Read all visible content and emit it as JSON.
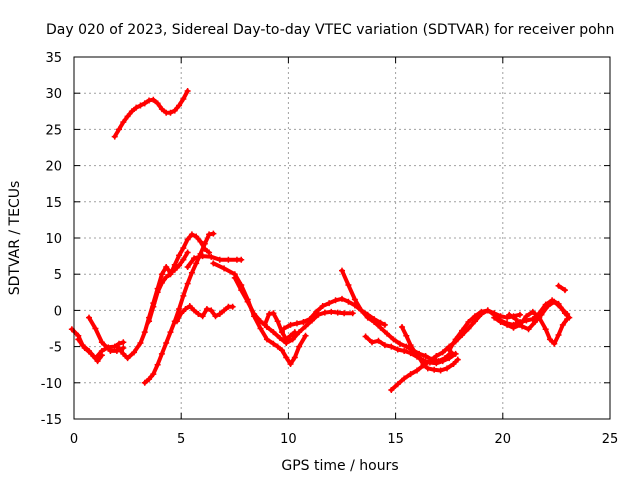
{
  "chart_data": {
    "type": "scatter",
    "title": "Day 020 of 2023, Sidereal Day-to-day VTEC variation (SDTVAR) for receiver pohn",
    "xlabel": "GPS time / hours",
    "ylabel": "SDTVAR / TECUs",
    "xlim": [
      0,
      25
    ],
    "ylim": [
      -15,
      35
    ],
    "xticks": [
      0,
      5,
      10,
      15,
      20,
      25
    ],
    "yticks": [
      -15,
      -10,
      -5,
      0,
      5,
      10,
      15,
      20,
      25,
      30,
      35
    ],
    "grid": true,
    "color": "#ff0000",
    "series": [
      {
        "name": "arc-1",
        "points": [
          [
            -0.1,
            -2.6
          ],
          [
            0.2,
            -3.5
          ],
          [
            0.4,
            -4.8
          ],
          [
            0.7,
            -5.6
          ],
          [
            1.0,
            -6.6
          ],
          [
            1.3,
            -5.6
          ],
          [
            1.6,
            -5.1
          ],
          [
            1.9,
            -5.0
          ],
          [
            2.1,
            -4.6
          ],
          [
            2.3,
            -4.4
          ]
        ]
      },
      {
        "name": "arc-2",
        "points": [
          [
            0.2,
            -4.0
          ],
          [
            0.5,
            -5.2
          ],
          [
            0.8,
            -6.0
          ],
          [
            1.1,
            -7.0
          ],
          [
            1.3,
            -6.2
          ]
        ]
      },
      {
        "name": "arc-3",
        "points": [
          [
            0.7,
            -1.0
          ],
          [
            1.0,
            -2.5
          ],
          [
            1.3,
            -4.4
          ],
          [
            1.7,
            -5.6
          ],
          [
            2.0,
            -5.6
          ],
          [
            2.3,
            -5.2
          ]
        ]
      },
      {
        "name": "arc-4",
        "points": [
          [
            2.0,
            -5.0
          ],
          [
            2.3,
            -6.0
          ],
          [
            2.5,
            -6.6
          ],
          [
            2.8,
            -5.8
          ],
          [
            3.1,
            -4.5
          ],
          [
            3.3,
            -3.0
          ],
          [
            3.5,
            -1.0
          ],
          [
            3.7,
            1.0
          ],
          [
            3.9,
            3.0
          ],
          [
            4.1,
            5.0
          ],
          [
            4.3,
            6.0
          ],
          [
            4.5,
            5.2
          ],
          [
            4.7,
            5.6
          ],
          [
            4.9,
            6.2
          ],
          [
            5.1,
            7.0
          ],
          [
            5.3,
            8.0
          ]
        ]
      },
      {
        "name": "arc-5",
        "points": [
          [
            3.5,
            -1.5
          ],
          [
            3.7,
            0.5
          ],
          [
            3.9,
            2.5
          ],
          [
            4.1,
            3.8
          ],
          [
            4.3,
            4.6
          ],
          [
            4.5,
            5.0
          ],
          [
            4.7,
            6.3
          ],
          [
            4.9,
            7.6
          ],
          [
            5.1,
            8.6
          ],
          [
            5.3,
            9.8
          ],
          [
            5.5,
            10.5
          ],
          [
            5.7,
            10.2
          ],
          [
            5.9,
            9.5
          ],
          [
            6.1,
            8.5
          ],
          [
            6.3,
            8.0
          ]
        ]
      },
      {
        "name": "arc-6",
        "points": [
          [
            3.3,
            -10.0
          ],
          [
            3.5,
            -9.5
          ],
          [
            3.7,
            -8.8
          ],
          [
            3.9,
            -7.5
          ],
          [
            4.1,
            -6.0
          ],
          [
            4.3,
            -4.5
          ],
          [
            4.5,
            -3.0
          ],
          [
            4.7,
            -1.5
          ],
          [
            4.9,
            0.2
          ],
          [
            5.1,
            2.0
          ],
          [
            5.3,
            3.7
          ],
          [
            5.5,
            5.2
          ],
          [
            5.7,
            6.5
          ],
          [
            5.9,
            7.8
          ],
          [
            6.1,
            9.2
          ],
          [
            6.3,
            10.5
          ],
          [
            6.5,
            10.6
          ]
        ]
      },
      {
        "name": "arc-7",
        "points": [
          [
            4.8,
            -1.5
          ],
          [
            5.0,
            -0.4
          ],
          [
            5.2,
            0.2
          ],
          [
            5.4,
            0.6
          ],
          [
            5.6,
            0.0
          ],
          [
            5.8,
            -0.5
          ],
          [
            6.0,
            -0.8
          ],
          [
            6.2,
            0.2
          ],
          [
            6.4,
            0.0
          ],
          [
            6.6,
            -0.8
          ],
          [
            6.8,
            -0.5
          ],
          [
            7.0,
            0.0
          ],
          [
            7.2,
            0.5
          ],
          [
            7.4,
            0.5
          ]
        ]
      },
      {
        "name": "arc-8",
        "points": [
          [
            5.3,
            6.0
          ],
          [
            5.6,
            7.2
          ],
          [
            6.0,
            7.5
          ],
          [
            6.4,
            7.4
          ],
          [
            6.8,
            7.0
          ],
          [
            7.2,
            7.0
          ],
          [
            7.6,
            7.0
          ],
          [
            7.8,
            7.0
          ]
        ]
      },
      {
        "name": "arc-9",
        "points": [
          [
            6.5,
            6.5
          ],
          [
            7.0,
            5.8
          ],
          [
            7.5,
            5.0
          ],
          [
            7.8,
            3.5
          ],
          [
            8.1,
            1.5
          ],
          [
            8.4,
            -0.8
          ],
          [
            8.7,
            -2.5
          ],
          [
            9.0,
            -4.0
          ],
          [
            9.3,
            -4.6
          ],
          [
            9.5,
            -5.0
          ],
          [
            9.7,
            -5.5
          ],
          [
            9.9,
            -6.5
          ],
          [
            10.1,
            -7.4
          ],
          [
            10.3,
            -6.5
          ],
          [
            10.5,
            -5.0
          ],
          [
            10.8,
            -3.5
          ]
        ]
      },
      {
        "name": "arc-10",
        "points": [
          [
            7.5,
            4.5
          ],
          [
            7.8,
            2.8
          ],
          [
            8.1,
            1.2
          ],
          [
            8.4,
            -0.5
          ],
          [
            8.7,
            -1.5
          ],
          [
            8.9,
            -2.0
          ],
          [
            9.1,
            -0.5
          ],
          [
            9.3,
            -0.4
          ],
          [
            9.5,
            -1.5
          ],
          [
            9.7,
            -3.0
          ],
          [
            9.9,
            -4.0
          ],
          [
            10.1,
            -3.5
          ],
          [
            10.3,
            -3.0
          ]
        ]
      },
      {
        "name": "arc-11",
        "points": [
          [
            9.0,
            -2.3
          ],
          [
            9.3,
            -3.0
          ],
          [
            9.6,
            -3.8
          ],
          [
            9.9,
            -4.5
          ],
          [
            10.2,
            -4.0
          ],
          [
            10.5,
            -3.0
          ],
          [
            10.8,
            -2.2
          ],
          [
            11.1,
            -1.4
          ],
          [
            11.4,
            -0.6
          ],
          [
            11.7,
            -0.3
          ],
          [
            12.0,
            -0.2
          ],
          [
            12.3,
            -0.3
          ],
          [
            12.6,
            -0.4
          ],
          [
            13.0,
            -0.4
          ]
        ]
      },
      {
        "name": "arc-12",
        "points": [
          [
            9.8,
            -2.5
          ],
          [
            10.1,
            -2.0
          ],
          [
            10.4,
            -1.8
          ],
          [
            10.7,
            -1.6
          ],
          [
            11.0,
            -1.2
          ],
          [
            11.3,
            -0.2
          ],
          [
            11.6,
            0.6
          ],
          [
            11.9,
            1.0
          ],
          [
            12.2,
            1.4
          ],
          [
            12.5,
            1.6
          ],
          [
            12.8,
            1.2
          ],
          [
            13.1,
            0.7
          ],
          [
            13.4,
            0.0
          ],
          [
            13.7,
            -0.6
          ],
          [
            14.0,
            -1.2
          ],
          [
            14.3,
            -1.7
          ],
          [
            14.5,
            -2.0
          ]
        ]
      },
      {
        "name": "arc-13",
        "points": [
          [
            12.5,
            5.5
          ],
          [
            12.8,
            3.5
          ],
          [
            13.1,
            1.5
          ],
          [
            13.4,
            0.0
          ],
          [
            13.7,
            -1.0
          ],
          [
            14.0,
            -1.6
          ],
          [
            14.3,
            -2.4
          ],
          [
            14.6,
            -3.2
          ],
          [
            14.9,
            -4.0
          ],
          [
            15.2,
            -4.6
          ],
          [
            15.5,
            -5.0
          ],
          [
            15.8,
            -5.5
          ],
          [
            16.1,
            -6.0
          ],
          [
            16.4,
            -6.3
          ],
          [
            16.7,
            -6.8
          ],
          [
            17.0,
            -7.0
          ],
          [
            17.3,
            -6.6
          ],
          [
            17.6,
            -5.8
          ]
        ]
      },
      {
        "name": "arc-14",
        "points": [
          [
            13.6,
            -3.6
          ],
          [
            13.9,
            -4.4
          ],
          [
            14.2,
            -4.2
          ],
          [
            14.5,
            -4.8
          ],
          [
            14.8,
            -5.0
          ],
          [
            15.1,
            -5.4
          ],
          [
            15.4,
            -5.6
          ],
          [
            15.7,
            -5.9
          ],
          [
            16.0,
            -6.4
          ],
          [
            16.3,
            -6.9
          ],
          [
            16.6,
            -7.2
          ],
          [
            16.9,
            -7.3
          ],
          [
            17.2,
            -7.0
          ],
          [
            17.5,
            -6.6
          ],
          [
            17.8,
            -6.0
          ]
        ]
      },
      {
        "name": "arc-15",
        "points": [
          [
            15.3,
            -2.3
          ],
          [
            15.5,
            -3.5
          ],
          [
            15.7,
            -4.8
          ],
          [
            15.9,
            -5.8
          ],
          [
            16.1,
            -6.5
          ],
          [
            16.3,
            -7.5
          ],
          [
            16.5,
            -8.0
          ],
          [
            16.8,
            -8.2
          ],
          [
            17.1,
            -8.3
          ],
          [
            17.4,
            -8.0
          ],
          [
            17.7,
            -7.4
          ],
          [
            17.9,
            -6.8
          ]
        ]
      },
      {
        "name": "arc-16",
        "points": [
          [
            14.8,
            -11.0
          ],
          [
            15.1,
            -10.2
          ],
          [
            15.4,
            -9.4
          ],
          [
            15.7,
            -8.8
          ],
          [
            16.0,
            -8.3
          ],
          [
            16.3,
            -7.6
          ],
          [
            16.6,
            -7.0
          ],
          [
            16.9,
            -6.3
          ],
          [
            17.2,
            -5.8
          ],
          [
            17.5,
            -5.0
          ],
          [
            17.8,
            -4.3
          ],
          [
            18.1,
            -3.4
          ],
          [
            18.4,
            -2.5
          ],
          [
            18.7,
            -1.5
          ],
          [
            19.0,
            -0.5
          ],
          [
            19.3,
            0.0
          ],
          [
            19.6,
            -0.4
          ],
          [
            19.9,
            -0.8
          ],
          [
            20.2,
            -1.0
          ],
          [
            20.5,
            -0.8
          ],
          [
            20.8,
            -0.6
          ]
        ]
      },
      {
        "name": "arc-17",
        "points": [
          [
            17.5,
            -5.5
          ],
          [
            17.8,
            -4.0
          ],
          [
            18.1,
            -2.8
          ],
          [
            18.4,
            -1.6
          ],
          [
            18.7,
            -0.8
          ],
          [
            19.0,
            -0.2
          ],
          [
            19.3,
            0.0
          ],
          [
            19.6,
            -0.6
          ],
          [
            19.9,
            -1.4
          ],
          [
            20.2,
            -1.8
          ],
          [
            20.5,
            -2.0
          ],
          [
            20.8,
            -1.6
          ],
          [
            21.1,
            -1.4
          ],
          [
            21.4,
            -1.2
          ],
          [
            21.7,
            -0.4
          ],
          [
            22.0,
            0.8
          ],
          [
            22.3,
            1.4
          ],
          [
            22.6,
            0.9
          ],
          [
            22.9,
            -0.4
          ],
          [
            23.1,
            -1.0
          ]
        ]
      },
      {
        "name": "arc-18",
        "points": [
          [
            19.6,
            -1.0
          ],
          [
            19.9,
            -1.6
          ],
          [
            20.2,
            -2.0
          ],
          [
            20.5,
            -2.4
          ],
          [
            20.8,
            -2.0
          ],
          [
            21.1,
            -0.8
          ],
          [
            21.4,
            -0.2
          ],
          [
            21.7,
            -1.0
          ],
          [
            22.0,
            -2.6
          ],
          [
            22.2,
            -4.0
          ],
          [
            22.4,
            -4.6
          ],
          [
            22.6,
            -3.4
          ],
          [
            22.8,
            -2.0
          ],
          [
            23.0,
            -1.2
          ]
        ]
      },
      {
        "name": "arc-19",
        "points": [
          [
            20.3,
            -0.6
          ],
          [
            20.6,
            -1.2
          ],
          [
            20.9,
            -2.2
          ],
          [
            21.2,
            -2.6
          ],
          [
            21.5,
            -1.6
          ],
          [
            21.8,
            -0.6
          ],
          [
            22.1,
            0.6
          ],
          [
            22.4,
            1.2
          ],
          [
            22.7,
            0.4
          ],
          [
            23.0,
            -0.5
          ]
        ]
      },
      {
        "name": "arc-20",
        "points": [
          [
            22.6,
            3.4
          ],
          [
            22.9,
            2.8
          ]
        ]
      },
      {
        "name": "arc-21",
        "points": [
          [
            1.9,
            24.0
          ],
          [
            2.1,
            25.0
          ],
          [
            2.3,
            26.0
          ],
          [
            2.5,
            26.8
          ],
          [
            2.7,
            27.5
          ],
          [
            2.9,
            28.0
          ],
          [
            3.1,
            28.3
          ],
          [
            3.3,
            28.6
          ],
          [
            3.5,
            29.0
          ],
          [
            3.7,
            29.1
          ],
          [
            3.9,
            28.6
          ],
          [
            4.1,
            27.8
          ],
          [
            4.3,
            27.3
          ],
          [
            4.5,
            27.3
          ],
          [
            4.7,
            27.6
          ],
          [
            4.9,
            28.3
          ],
          [
            5.1,
            29.2
          ],
          [
            5.3,
            30.3
          ]
        ]
      }
    ]
  }
}
